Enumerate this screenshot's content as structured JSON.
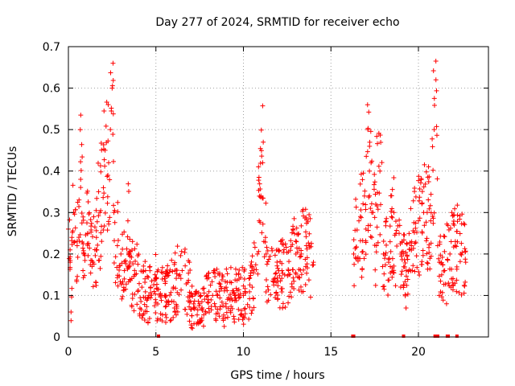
{
  "chart_data": {
    "type": "scatter",
    "title": "Day 277 of 2024, SRMTID for receiver echo",
    "xlabel": "GPS time / hours",
    "ylabel": "SRMTID / TECUs",
    "xlim": [
      0,
      24
    ],
    "ylim": [
      0,
      0.7
    ],
    "xticks": [
      0,
      5,
      10,
      15,
      20
    ],
    "yticks": [
      0,
      0.1,
      0.2,
      0.3,
      0.4,
      0.5,
      0.6,
      0.7
    ],
    "grid": true,
    "marker": "+",
    "color": "#ff0000",
    "series": [
      {
        "name": "receiver echo",
        "segments": [
          {
            "range": [
              0.0,
              0.2
            ],
            "points": [
              [
                0.0,
                0.26
              ],
              [
                0.1,
                0.18
              ],
              [
                0.15,
                0.06
              ],
              [
                0.2,
                0.24
              ]
            ]
          },
          {
            "range": [
              0.2,
              0.9
            ],
            "points": [
              [
                0.3,
                0.3
              ],
              [
                0.5,
                0.22
              ],
              [
                0.7,
                0.38
              ],
              [
                0.9,
                0.2
              ]
            ]
          },
          {
            "range": [
              0.9,
              1.6
            ],
            "points": [
              [
                1.1,
                0.25
              ],
              [
                1.4,
                0.18
              ],
              [
                1.6,
                0.24
              ]
            ]
          },
          {
            "range": [
              1.6,
              2.6
            ],
            "points": [
              [
                1.8,
                0.3
              ],
              [
                2.0,
                0.36
              ],
              [
                2.1,
                0.45
              ],
              [
                2.3,
                0.42
              ],
              [
                2.4,
                0.5
              ],
              [
                2.5,
                0.6
              ],
              [
                2.55,
                0.66
              ],
              [
                2.6,
                0.3
              ]
            ]
          },
          {
            "range": [
              2.6,
              3.5
            ],
            "points": [
              [
                2.8,
                0.22
              ],
              [
                3.0,
                0.2
              ],
              [
                3.2,
                0.16
              ],
              [
                3.4,
                0.28
              ],
              [
                3.5,
                0.2
              ]
            ]
          },
          {
            "range": [
              3.5,
              5.0
            ],
            "points": [
              [
                3.8,
                0.15
              ],
              [
                4.2,
                0.12
              ],
              [
                4.6,
                0.1
              ],
              [
                5.0,
                0.14
              ]
            ]
          },
          {
            "range": [
              5.0,
              7.0
            ],
            "points": [
              [
                5.5,
                0.1
              ],
              [
                6.0,
                0.12
              ],
              [
                6.5,
                0.16
              ],
              [
                7.0,
                0.1
              ]
            ]
          },
          {
            "range": [
              7.0,
              9.0
            ],
            "points": [
              [
                7.5,
                0.08
              ],
              [
                8.0,
                0.09
              ],
              [
                8.5,
                0.1
              ],
              [
                9.0,
                0.08
              ]
            ]
          },
          {
            "range": [
              9.0,
              10.8
            ],
            "points": [
              [
                9.5,
                0.1
              ],
              [
                10.0,
                0.1
              ],
              [
                10.5,
                0.12
              ],
              [
                10.8,
                0.2
              ]
            ]
          },
          {
            "range": [
              10.8,
              11.3
            ],
            "points": [
              [
                10.9,
                0.28
              ],
              [
                11.0,
                0.34
              ],
              [
                11.1,
                0.42
              ],
              [
                11.3,
                0.2
              ]
            ]
          },
          {
            "range": [
              11.3,
              13.0
            ],
            "points": [
              [
                11.8,
                0.14
              ],
              [
                12.2,
                0.16
              ],
              [
                12.6,
                0.15
              ],
              [
                13.0,
                0.2
              ]
            ]
          },
          {
            "range": [
              13.0,
              14.0
            ],
            "points": [
              [
                13.3,
                0.2
              ],
              [
                13.6,
                0.22
              ],
              [
                14.0,
                0.18
              ]
            ]
          },
          {
            "range": [
              16.3,
              17.0
            ],
            "points": [
              [
                16.3,
                0.2
              ],
              [
                16.6,
                0.28
              ],
              [
                17.0,
                0.26
              ]
            ]
          },
          {
            "range": [
              17.0,
              17.6
            ],
            "points": [
              [
                17.2,
                0.4
              ],
              [
                17.4,
                0.3
              ],
              [
                17.6,
                0.22
              ]
            ]
          },
          {
            "range": [
              17.6,
              18.6
            ],
            "points": [
              [
                17.8,
                0.4
              ],
              [
                18.0,
                0.2
              ],
              [
                18.3,
                0.18
              ],
              [
                18.6,
                0.3
              ]
            ]
          },
          {
            "range": [
              18.6,
              20.5
            ],
            "points": [
              [
                19.0,
                0.2
              ],
              [
                19.3,
                0.16
              ],
              [
                19.6,
                0.22
              ],
              [
                20.0,
                0.28
              ],
              [
                20.3,
                0.3
              ],
              [
                20.5,
                0.3
              ]
            ]
          },
          {
            "range": [
              20.5,
              21.2
            ],
            "points": [
              [
                20.7,
                0.28
              ],
              [
                20.9,
                0.5
              ],
              [
                21.0,
                0.62
              ],
              [
                21.1,
                0.22
              ],
              [
                21.2,
                0.18
              ]
            ]
          },
          {
            "range": [
              21.2,
              22.7
            ],
            "points": [
              [
                21.5,
                0.16
              ],
              [
                21.8,
                0.2
              ],
              [
                22.1,
                0.22
              ],
              [
                22.4,
                0.2
              ],
              [
                22.7,
                0.18
              ]
            ]
          }
        ]
      }
    ],
    "zero_points_x": [
      5.15,
      16.25,
      16.3,
      19.15,
      20.95,
      21.1,
      21.65,
      21.7,
      22.2
    ]
  }
}
